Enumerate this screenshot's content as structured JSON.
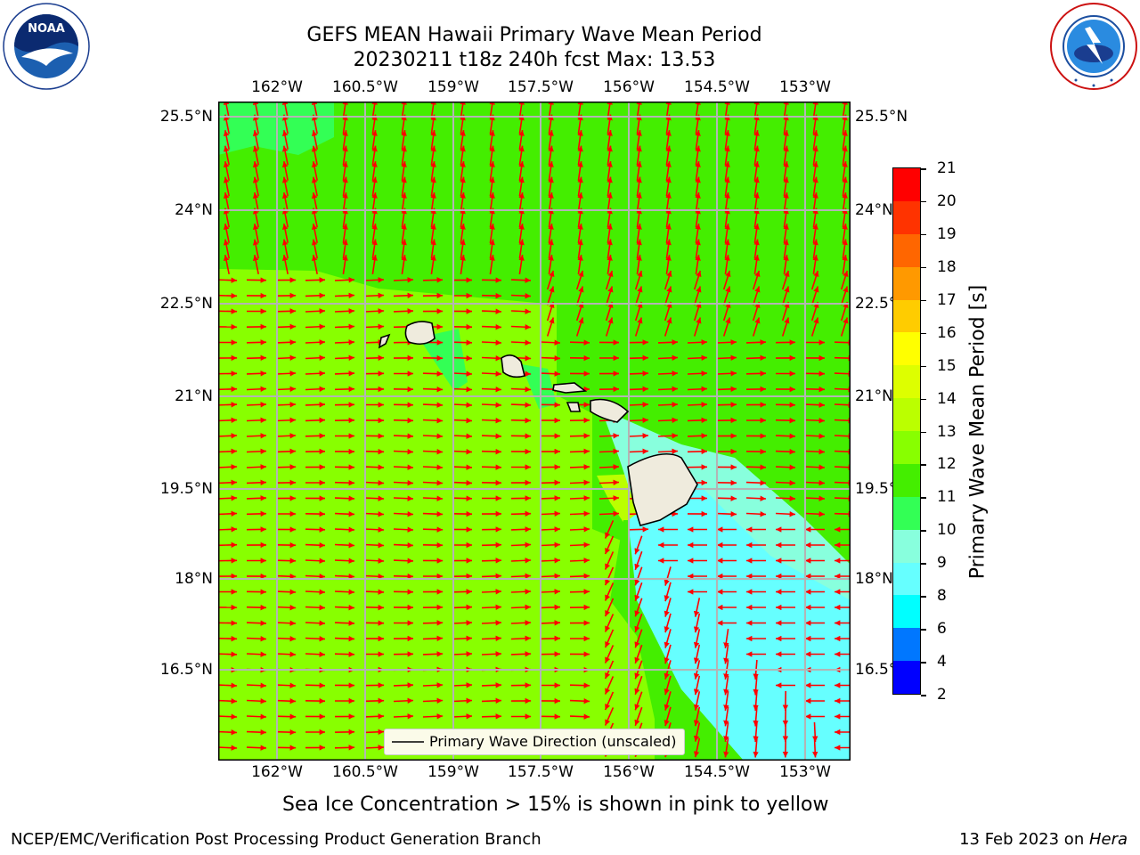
{
  "title": {
    "line1": "GEFS MEAN Hawaii Primary Wave Mean Period",
    "line2": "20230211 t18z 240h fcst   Max: 13.53"
  },
  "logos": {
    "noaa": "NOAA",
    "noaa_ring": "NATIONAL OCEANIC AND ATMOSPHERIC ADMINISTRATION · U.S. DEPARTMENT OF COMMERCE",
    "nws_ring": "NATIONAL WEATHER SERVICE"
  },
  "map": {
    "lon_labels": [
      "162°W",
      "160.5°W",
      "159°W",
      "157.5°W",
      "156°W",
      "154.5°W",
      "153°W"
    ],
    "lat_labels": [
      "25.5°N",
      "24°N",
      "22.5°N",
      "21°N",
      "19.5°N",
      "18°N",
      "16.5°N"
    ],
    "legend_label": "Primary Wave Direction (unscaled)",
    "land_color": "#efebdd",
    "arrow_color": "#ff0000"
  },
  "colorbar": {
    "label": "Primary Wave Mean Period [s]",
    "ticks": [
      "21",
      "20",
      "19",
      "18",
      "17",
      "16",
      "15",
      "14",
      "13",
      "12",
      "11",
      "10",
      "9",
      "8",
      "6",
      "4",
      "2"
    ],
    "colors": [
      "#ff0000",
      "#ff3300",
      "#ff6600",
      "#ff9900",
      "#ffcc00",
      "#ffff00",
      "#ddff00",
      "#bbff00",
      "#88ff00",
      "#44ee00",
      "#33ff55",
      "#88ffdd",
      "#66ffff",
      "#00ffff",
      "#0077ff",
      "#0000ff"
    ]
  },
  "note": "Sea Ice Concentration > 15% is shown in pink to yellow",
  "footer": {
    "left": "NCEP/EMC/Verification Post Processing Product Generation Branch",
    "date": "13 Feb 2023 on ",
    "machine": "Hera"
  }
}
